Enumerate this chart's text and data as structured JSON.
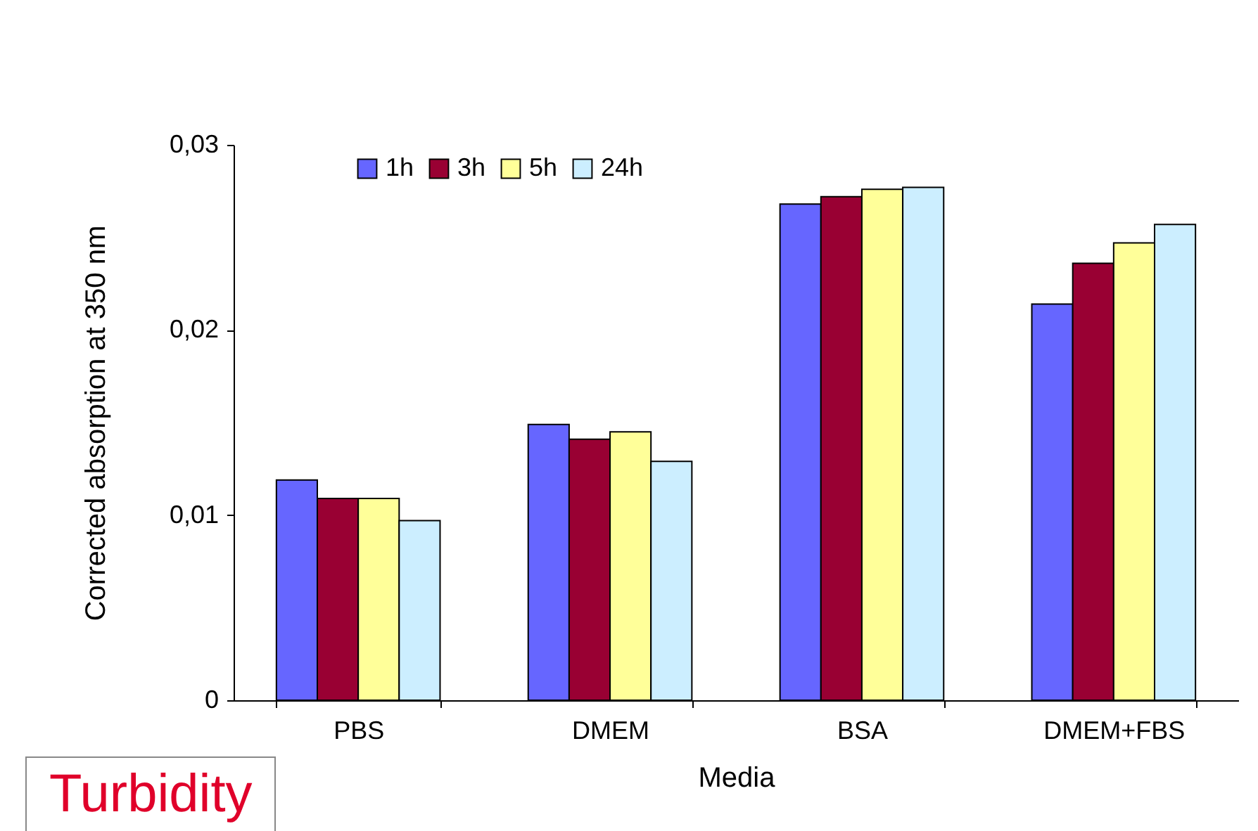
{
  "chart_data": {
    "type": "bar",
    "xlabel": "Media",
    "ylabel": "Corrected absorption at 350 nm",
    "categories": [
      "PBS",
      "DMEM",
      "BSA",
      "DMEM+FBS"
    ],
    "series": [
      {
        "name": "1h",
        "color": "#6666ff",
        "values": [
          0.0119,
          0.0149,
          0.0268,
          0.0214
        ]
      },
      {
        "name": "3h",
        "color": "#990033",
        "values": [
          0.0109,
          0.0141,
          0.0272,
          0.0236
        ]
      },
      {
        "name": "5h",
        "color": "#ffff99",
        "values": [
          0.0109,
          0.0145,
          0.0276,
          0.0247
        ]
      },
      {
        "name": "24h",
        "color": "#cceeff",
        "values": [
          0.0097,
          0.0129,
          0.0277,
          0.0257
        ]
      }
    ],
    "ylim": [
      0,
      0.03
    ],
    "yticks": [
      {
        "value": 0,
        "label": "0"
      },
      {
        "value": 0.01,
        "label": "0,01"
      },
      {
        "value": 0.02,
        "label": "0,02"
      },
      {
        "value": 0.03,
        "label": "0,03"
      }
    ],
    "grid": false,
    "legend": "top left",
    "annotations": [
      "Turbidity"
    ]
  }
}
